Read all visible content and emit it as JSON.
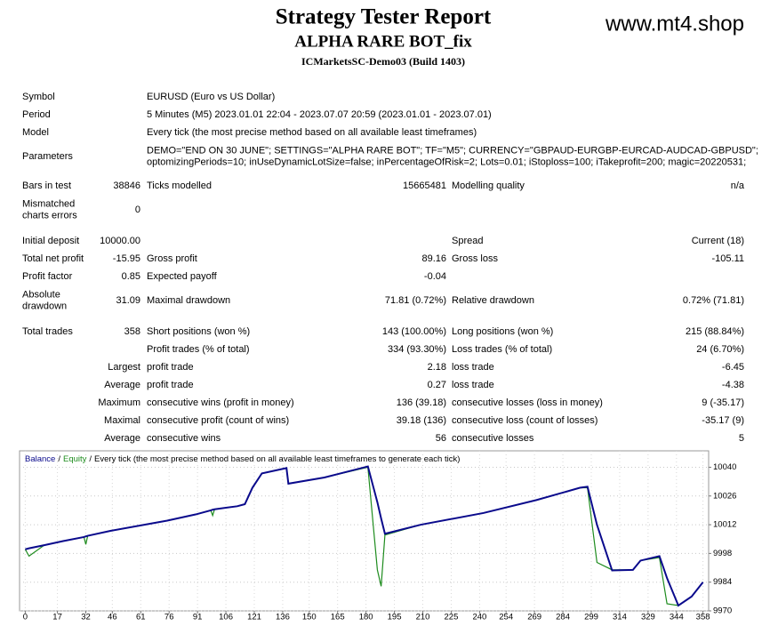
{
  "header": {
    "title": "Strategy Tester Report",
    "subtitle": "ALPHA RARE BOT_fix",
    "server": "ICMarketsSC-Demo03 (Build 1403)",
    "brand": "www.mt4.shop"
  },
  "table": {
    "rows": [
      {
        "label": "Symbol",
        "name2": "EURUSD (Euro vs US Dollar)"
      },
      {
        "label": "Period",
        "name2": "5 Minutes (M5) 2023.01.01 22:04 - 2023.07.07 20:59 (2023.01.01 - 2023.07.01)"
      },
      {
        "label": "Model",
        "name2": "Every tick (the most precise method based on all available least timeframes)"
      },
      {
        "label": "Parameters",
        "name2": [
          "DEMO=\"END ON 30 JUNE\"; SETTINGS=\"ALPHA RARE BOT\"; TF=\"M5\"; CURRENCY=\"GBPAUD-EURGBP-EURCAD-AUDCAD-GBPUSD\";",
          "optomizingPeriods=10; inUseDynamicLotSize=false; inPercentageOfRisk=2; Lots=0.01; iStoploss=100; iTakeprofit=200; magic=20220531;"
        ]
      },
      {
        "label": "Bars in test",
        "num": "38846",
        "name2": "Ticks modelled",
        "val2": "15665481",
        "name3": "Modelling quality",
        "val3": "n/a"
      },
      {
        "label": [
          "Mismatched",
          "charts errors"
        ],
        "num": "0"
      },
      {
        "label": "Initial deposit",
        "num": "10000.00",
        "name3": "Spread",
        "val3": "Current (18)"
      },
      {
        "label": "Total net profit",
        "num": "-15.95",
        "name2": "Gross profit",
        "val2": "89.16",
        "name3": "Gross loss",
        "val3": "-105.11"
      },
      {
        "label": "Profit factor",
        "num": "0.85",
        "name2": "Expected payoff",
        "val2": "-0.04"
      },
      {
        "label": [
          "Absolute",
          "drawdown"
        ],
        "num": "31.09",
        "name2": "Maximal drawdown",
        "val2": "71.81 (0.72%)",
        "name3": "Relative drawdown",
        "val3": "0.72% (71.81)"
      },
      {
        "label": "Total trades",
        "num": "358",
        "name2": "Short positions (won %)",
        "val2": "143 (100.00%)",
        "name3": "Long positions (won %)",
        "val3": "215 (88.84%)"
      },
      {
        "name2": "Profit trades (% of total)",
        "val2": "334 (93.30%)",
        "name3": "Loss trades (% of total)",
        "val3": "24 (6.70%)"
      },
      {
        "num": "Largest",
        "name2": "profit trade",
        "val2": "2.18",
        "name3": "loss trade",
        "val3": "-6.45"
      },
      {
        "num": "Average",
        "name2": "profit trade",
        "val2": "0.27",
        "name3": "loss trade",
        "val3": "-4.38"
      },
      {
        "num": "Maximum",
        "name2": "consecutive wins (profit in money)",
        "val2": "136 (39.18)",
        "name3": "consecutive losses (loss in money)",
        "val3": "9 (-35.17)"
      },
      {
        "num": "Maximal",
        "name2": "consecutive profit (count of wins)",
        "val2": "39.18 (136)",
        "name3": "consecutive loss (count of losses)",
        "val3": "-35.17 (9)"
      },
      {
        "num": "Average",
        "name2": "consecutive wins",
        "val2": "56",
        "name3": "consecutive losses",
        "val3": "5"
      }
    ]
  },
  "chart_data": {
    "type": "line",
    "legend_separator": "/",
    "subtitle": "Every tick (the most precise method based on all available least timeframes to generate each tick)",
    "x": [
      0,
      2,
      10,
      20,
      31,
      32,
      33,
      45,
      60,
      75,
      90,
      98,
      99,
      100,
      112,
      116,
      120,
      125,
      138,
      139,
      158,
      181,
      186,
      188,
      190,
      209,
      242,
      270,
      293,
      297,
      302,
      310,
      321,
      325,
      335,
      339,
      345,
      352,
      358
    ],
    "series": [
      {
        "name": "Balance",
        "color": "#0a0a8c",
        "values": [
          10000,
          10000.5,
          10002,
          10004,
          10006,
          10006.3,
          10006.6,
          10009,
          10011.5,
          10014,
          10017,
          10019,
          10019.3,
          10019.5,
          10021,
          10022,
          10030,
          10037,
          10039.6,
          10032,
          10035,
          10040.4,
          10023,
          10015,
          10007.6,
          10012,
          10017.7,
          10024,
          10030,
          10030.5,
          10012,
          9989.7,
          9990,
          9994.5,
          9996.7,
          9986,
          9972.6,
          9977,
          9984
        ]
      },
      {
        "name": "Equity",
        "color": "#1e8c1e",
        "values": [
          10000,
          9996.7,
          10002,
          10004,
          10006,
          10002.4,
          10006.6,
          10009,
          10011.5,
          10014,
          10017,
          10019,
          10016.5,
          10019.5,
          10021,
          10022,
          10030,
          10037,
          10039.6,
          10032,
          10035,
          10040,
          9990,
          9982,
          10007,
          10012,
          10017.7,
          10024,
          10030,
          10030,
          9993.6,
          9990,
          9990,
          9994.5,
          9996,
          9973.5,
          9972.6,
          9977,
          9984
        ]
      }
    ],
    "xlim": [
      -3,
      361
    ],
    "xticks": [
      0,
      17,
      32,
      46,
      61,
      76,
      91,
      106,
      121,
      136,
      150,
      165,
      180,
      195,
      210,
      225,
      240,
      254,
      269,
      284,
      299,
      314,
      329,
      344,
      358
    ],
    "ylim": [
      9970,
      10048
    ],
    "yticks": [
      9970,
      9984,
      9998,
      10012,
      10026,
      10040
    ],
    "grid": true
  }
}
